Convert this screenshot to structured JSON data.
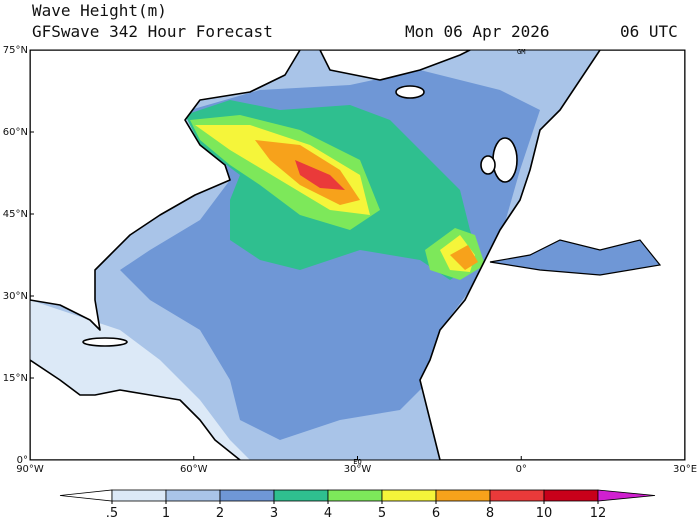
{
  "header": {
    "title": "Wave Height(m)",
    "subtitle": "GFSwave 342 Hour Forecast",
    "date": "Mon 06 Apr 2026",
    "time": "06 UTC"
  },
  "map": {
    "lat_labels": [
      "75°N",
      "60°N",
      "45°N",
      "30°N",
      "15°N",
      "0°"
    ],
    "lon_labels": [
      "90°W",
      "60°W",
      "30°W",
      "0°",
      "30°E"
    ],
    "meridian_label": "GM",
    "equator_label": "EQ"
  },
  "colorbar": {
    "levels": [
      {
        "value": 0.5,
        "label": ".5"
      },
      1,
      2,
      3,
      4,
      5,
      6,
      8,
      10,
      12
    ],
    "colors": [
      "#ffffff",
      "#dce9f7",
      "#a9c4e8",
      "#6f97d6",
      "#2fbf8f",
      "#7de85a",
      "#f5f53a",
      "#f7a21b",
      "#ea3a3a",
      "#c8001a",
      "#d020d0"
    ]
  }
}
